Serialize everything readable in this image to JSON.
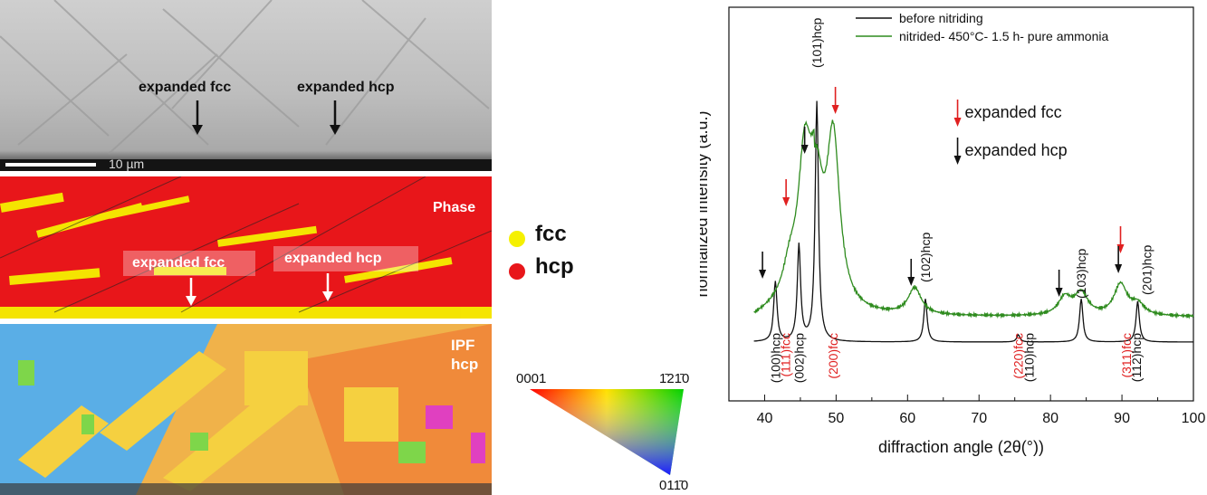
{
  "sem": {
    "label_fcc": "expanded fcc",
    "label_hcp": "expanded hcp",
    "scalebar": "10 µm"
  },
  "phase_map": {
    "title": "Phase",
    "label_fcc": "expanded fcc",
    "label_hcp": "expanded hcp",
    "colors": {
      "fcc": "#f5f000",
      "hcp": "#e8161a"
    }
  },
  "ipf_map": {
    "title_line1": "IPF",
    "title_line2": "hcp"
  },
  "phase_legend": [
    {
      "label": "fcc",
      "color": "#f5f000"
    },
    {
      "label": "hcp",
      "color": "#e8161a"
    }
  ],
  "ipf_legend": {
    "corner_top_left": "0001",
    "corner_top_right": "1̄21̄0",
    "corner_bottom": "011̄0"
  },
  "chart_data": {
    "type": "line",
    "xlabel": "diffraction angle (2θ(°))",
    "ylabel": "normalized intensity (a.u.)",
    "xlim": [
      35,
      100
    ],
    "xticks": [
      40,
      50,
      60,
      70,
      80,
      90,
      100
    ],
    "yticks_shown": false,
    "legend_placement": "top-right",
    "series": [
      {
        "name": "before nitriding",
        "color": "#111111",
        "peaks": [
          {
            "x": 41.5,
            "h": 0.25
          },
          {
            "x": 44.8,
            "h": 0.4
          },
          {
            "x": 47.3,
            "h": 1.0
          },
          {
            "x": 62.5,
            "h": 0.18
          },
          {
            "x": 75.5,
            "h": 0.03
          },
          {
            "x": 84.3,
            "h": 0.18
          },
          {
            "x": 92.2,
            "h": 0.17
          }
        ]
      },
      {
        "name": "nitrided- 450°C- 1.5 h- pure ammonia",
        "color": "#2e8b1e",
        "peaks": [
          {
            "x": 43.5,
            "h": 0.12
          },
          {
            "x": 45.6,
            "h": 0.58
          },
          {
            "x": 47.3,
            "h": 0.45
          },
          {
            "x": 49.6,
            "h": 0.75
          },
          {
            "x": 61.0,
            "h": 0.12
          },
          {
            "x": 82.0,
            "h": 0.08
          },
          {
            "x": 84.3,
            "h": 0.1
          },
          {
            "x": 89.8,
            "h": 0.14
          },
          {
            "x": 92.2,
            "h": 0.05
          }
        ]
      }
    ],
    "peak_labels_top": [
      {
        "text": "(101)hcp",
        "x": 47.3
      },
      {
        "text": "(102)hcp",
        "x": 62.5
      },
      {
        "text": "(103)hcp",
        "x": 84.3
      },
      {
        "text": "(201)hcp",
        "x": 93.5
      }
    ],
    "peak_labels_bottom": [
      {
        "text": "(100)hcp",
        "x": 41.5,
        "color": "#111111"
      },
      {
        "text": "(111)fcc",
        "x": 42.9,
        "color": "#e02020"
      },
      {
        "text": "(002)hcp",
        "x": 44.8,
        "color": "#111111"
      },
      {
        "text": "(200)fcc",
        "x": 49.6,
        "color": "#e02020"
      },
      {
        "text": "(220)fcc",
        "x": 75.5,
        "color": "#e02020"
      },
      {
        "text": "(110)hcp",
        "x": 77.0,
        "color": "#111111"
      },
      {
        "text": "(311)fcc",
        "x": 90.6,
        "color": "#e02020"
      },
      {
        "text": "(112)hcp",
        "x": 92.0,
        "color": "#111111"
      }
    ],
    "arrows_fcc": [
      43.0,
      49.9,
      89.8
    ],
    "arrows_hcp": [
      39.7,
      45.6,
      60.5,
      81.2,
      89.5
    ],
    "arrow_legend": [
      {
        "text": "expanded fcc",
        "color": "#e02020"
      },
      {
        "text": "expanded hcp",
        "color": "#111111"
      }
    ]
  }
}
